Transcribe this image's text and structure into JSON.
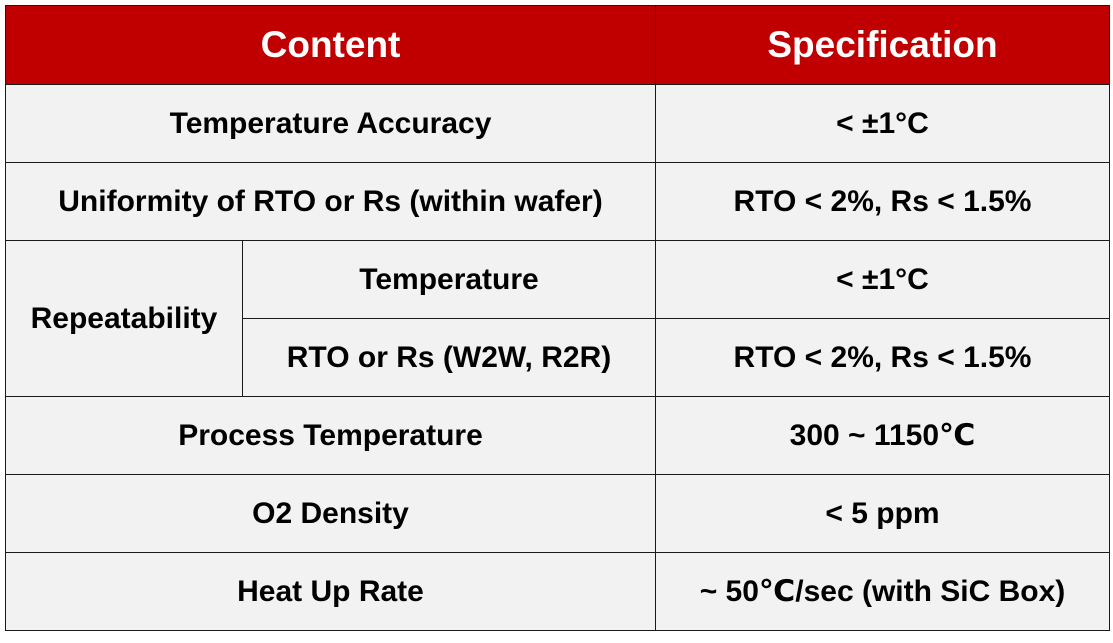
{
  "table": {
    "header": {
      "content": "Content",
      "specification": "Specification"
    },
    "rows": {
      "temperature_accuracy": {
        "label": "Temperature Accuracy",
        "value": "< ±1°C"
      },
      "uniformity": {
        "label": "Uniformity of RTO or Rs (within wafer)",
        "value": "RTO < 2%, Rs < 1.5%"
      },
      "repeatability": {
        "label": "Repeatability",
        "temperature": {
          "label": "Temperature",
          "value": "< ±1°C"
        },
        "rto_rs": {
          "label": "RTO or Rs (W2W, R2R)",
          "value": "RTO < 2%, Rs < 1.5%"
        }
      },
      "process_temperature": {
        "label": "Process Temperature",
        "value": "300 ~ 1150℃"
      },
      "o2_density": {
        "label": "O2 Density",
        "value": "< 5 ppm"
      },
      "heat_up_rate": {
        "label": "Heat Up Rate",
        "value": "~ 50℃/sec (with SiC Box)"
      }
    }
  }
}
